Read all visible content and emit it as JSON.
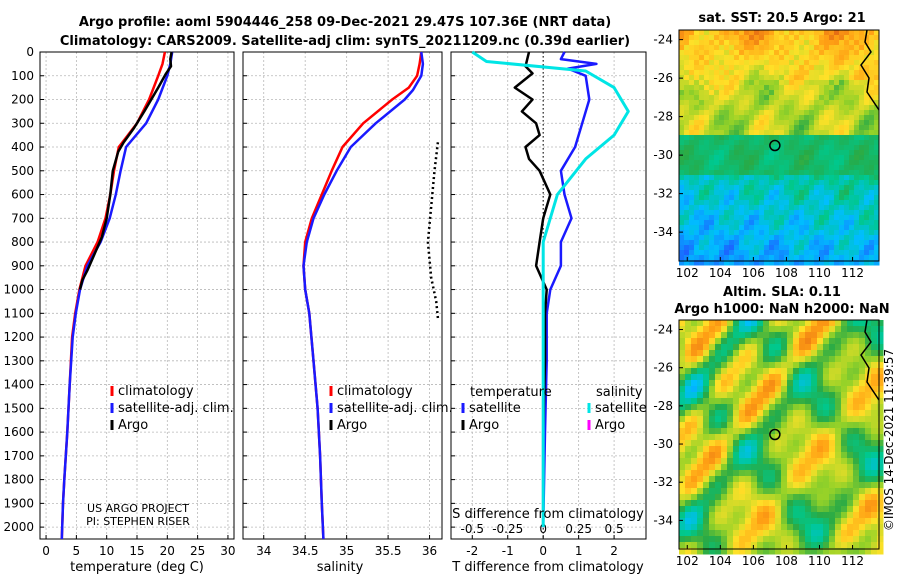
{
  "header": {
    "line1": "Argo profile: aoml 5904446_258 09-Dec-2021 29.47S 107.36E (NRT data)",
    "line2": "Climatology: CARS2009. Satellite-adj clim: synTS_20211209.nc (0.39d earlier)"
  },
  "colors": {
    "climatology": "#ff0000",
    "satellite": "#1a1aff",
    "argo": "#000000",
    "sat_salinity": "#00e5e5",
    "argo_salinity": "#ff00ff"
  },
  "chart_data": [
    {
      "id": "temperature",
      "type": "line",
      "xlabel": "temperature (deg C)",
      "ylabel": "",
      "xlim": [
        -1,
        31
      ],
      "ylim": [
        2050,
        0
      ],
      "xticks": [
        0,
        5,
        10,
        15,
        20,
        25,
        30
      ],
      "yticks": [
        0,
        100,
        200,
        300,
        400,
        500,
        600,
        700,
        800,
        900,
        1000,
        1100,
        1200,
        1300,
        1400,
        1500,
        1600,
        1700,
        1800,
        1900,
        2000
      ],
      "legend": [
        "climatology",
        "satellite-adj. clim.",
        "Argo"
      ],
      "note": [
        "US ARGO PROJECT",
        "PI: STEPHEN RISER"
      ],
      "series": [
        {
          "name": "climatology",
          "points": [
            [
              19.6,
              0
            ],
            [
              19.2,
              50
            ],
            [
              18.5,
              100
            ],
            [
              17.0,
              200
            ],
            [
              15.0,
              300
            ],
            [
              12.0,
              400
            ],
            [
              11.2,
              500
            ],
            [
              10.6,
              600
            ],
            [
              9.8,
              700
            ],
            [
              8.5,
              800
            ],
            [
              6.5,
              900
            ],
            [
              5.5,
              1000
            ],
            [
              4.8,
              1100
            ],
            [
              4.3,
              1200
            ],
            [
              3.9,
              1400
            ],
            [
              3.5,
              1600
            ],
            [
              3.0,
              1800
            ],
            [
              2.8,
              1900
            ],
            [
              2.6,
              2050
            ]
          ]
        },
        {
          "name": "satellite-adj. clim.",
          "points": [
            [
              20.8,
              0
            ],
            [
              20.5,
              50
            ],
            [
              20.0,
              100
            ],
            [
              18.5,
              200
            ],
            [
              16.5,
              300
            ],
            [
              13.2,
              400
            ],
            [
              12.3,
              500
            ],
            [
              11.5,
              600
            ],
            [
              10.5,
              700
            ],
            [
              9.0,
              800
            ],
            [
              6.8,
              900
            ],
            [
              5.6,
              1000
            ],
            [
              4.9,
              1100
            ],
            [
              4.4,
              1200
            ],
            [
              3.9,
              1400
            ],
            [
              3.5,
              1600
            ],
            [
              3.0,
              1800
            ],
            [
              2.8,
              1900
            ],
            [
              2.6,
              2050
            ]
          ]
        },
        {
          "name": "Argo",
          "points": [
            [
              20.7,
              0
            ],
            [
              20.5,
              30
            ],
            [
              20.6,
              60
            ],
            [
              19.8,
              90
            ],
            [
              18.5,
              150
            ],
            [
              16.2,
              250
            ],
            [
              14.5,
              320
            ],
            [
              12.8,
              380
            ],
            [
              11.9,
              420
            ],
            [
              11.0,
              500
            ],
            [
              10.6,
              600
            ],
            [
              10.0,
              700
            ],
            [
              9.2,
              780
            ],
            [
              8.0,
              850
            ],
            [
              6.8,
              920
            ],
            [
              6.0,
              960
            ],
            [
              5.6,
              1000
            ]
          ]
        }
      ]
    },
    {
      "id": "salinity",
      "type": "line",
      "xlabel": "salinity",
      "ylabel": "",
      "xlim": [
        33.75,
        36.15
      ],
      "ylim": [
        2050,
        0
      ],
      "xticks": [
        34,
        34.5,
        35,
        35.5,
        36
      ],
      "legend": [
        "climatology",
        "satellite-adj. clim.",
        "Argo"
      ],
      "series": [
        {
          "name": "climatology",
          "points": [
            [
              35.9,
              0
            ],
            [
              35.88,
              50
            ],
            [
              35.85,
              100
            ],
            [
              35.75,
              150
            ],
            [
              35.55,
              200
            ],
            [
              35.2,
              300
            ],
            [
              34.95,
              400
            ],
            [
              34.82,
              500
            ],
            [
              34.7,
              600
            ],
            [
              34.58,
              700
            ],
            [
              34.5,
              800
            ],
            [
              34.48,
              900
            ],
            [
              34.5,
              1000
            ],
            [
              34.55,
              1100
            ],
            [
              34.6,
              1300
            ],
            [
              34.65,
              1500
            ],
            [
              34.68,
              1700
            ],
            [
              34.7,
              1900
            ],
            [
              34.72,
              2050
            ]
          ]
        },
        {
          "name": "satellite-adj. clim.",
          "points": [
            [
              35.9,
              0
            ],
            [
              35.92,
              50
            ],
            [
              35.9,
              100
            ],
            [
              35.8,
              160
            ],
            [
              35.7,
              200
            ],
            [
              35.35,
              300
            ],
            [
              35.05,
              400
            ],
            [
              34.88,
              500
            ],
            [
              34.73,
              600
            ],
            [
              34.6,
              700
            ],
            [
              34.52,
              800
            ],
            [
              34.48,
              900
            ],
            [
              34.5,
              1000
            ],
            [
              34.55,
              1100
            ],
            [
              34.6,
              1300
            ],
            [
              34.65,
              1500
            ],
            [
              34.68,
              1700
            ],
            [
              34.7,
              1900
            ],
            [
              34.72,
              2050
            ]
          ]
        },
        {
          "name": "Argo (dotted)",
          "points": [
            [
              36.1,
              380
            ],
            [
              36.06,
              500
            ],
            [
              36.02,
              650
            ],
            [
              35.98,
              800
            ],
            [
              36.02,
              950
            ],
            [
              36.08,
              1050
            ],
            [
              36.1,
              1120
            ]
          ]
        }
      ]
    },
    {
      "id": "differences",
      "type": "line",
      "xlabel": "T difference from climatology",
      "xlabel_top": "S difference from climatology",
      "xlim": [
        -2.6,
        2.9
      ],
      "ylim": [
        2050,
        0
      ],
      "xticks": [
        -2,
        -1,
        0,
        1,
        2
      ],
      "xticks_top": [
        -0.5,
        -0.25,
        0,
        0.25,
        0.5
      ],
      "xticks_top_labels": [
        "-0.5",
        "-0.25",
        "0",
        "0.25",
        "0.5"
      ],
      "legend": {
        "temperature": [
          "satellite",
          "Argo"
        ],
        "salinity": [
          "satellite",
          "Argo"
        ]
      },
      "series": [
        {
          "name": "temperature satellite",
          "points": [
            [
              0.6,
              0
            ],
            [
              0.5,
              30
            ],
            [
              1.5,
              50
            ],
            [
              0.7,
              70
            ],
            [
              1.2,
              100
            ],
            [
              1.3,
              200
            ],
            [
              1.1,
              300
            ],
            [
              0.9,
              400
            ],
            [
              0.5,
              500
            ],
            [
              0.6,
              600
            ],
            [
              0.8,
              700
            ],
            [
              0.5,
              800
            ],
            [
              0.5,
              900
            ],
            [
              0.2,
              1000
            ],
            [
              0.1,
              1100
            ],
            [
              0.1,
              1300
            ],
            [
              0.05,
              1600
            ],
            [
              0.0,
              2000
            ]
          ]
        },
        {
          "name": "temperature Argo",
          "points": [
            [
              -0.4,
              0
            ],
            [
              -0.5,
              60
            ],
            [
              -0.3,
              90
            ],
            [
              -0.8,
              150
            ],
            [
              -0.3,
              200
            ],
            [
              -0.6,
              250
            ],
            [
              -0.2,
              300
            ],
            [
              -0.1,
              350
            ],
            [
              -0.5,
              400
            ],
            [
              -0.4,
              450
            ],
            [
              -0.1,
              500
            ],
            [
              0.2,
              600
            ],
            [
              0.0,
              700
            ],
            [
              -0.1,
              800
            ],
            [
              -0.2,
              900
            ],
            [
              0.1,
              1000
            ],
            [
              0.05,
              1100
            ],
            [
              0.05,
              1300
            ],
            [
              0.0,
              1600
            ],
            [
              0.0,
              2000
            ]
          ]
        },
        {
          "name": "salinity satellite",
          "points": [
            [
              -0.5,
              0
            ],
            [
              -0.4,
              40
            ],
            [
              0.3,
              80
            ],
            [
              0.5,
              150
            ],
            [
              0.6,
              250
            ],
            [
              0.5,
              350
            ],
            [
              0.3,
              450
            ],
            [
              0.1,
              600
            ],
            [
              0.0,
              800
            ],
            [
              0.0,
              1000
            ],
            [
              0.0,
              1200
            ],
            [
              0.0,
              1600
            ],
            [
              0.0,
              2000
            ]
          ]
        }
      ]
    }
  ],
  "maps": [
    {
      "id": "sst",
      "title": "sat. SST: 20.5  Argo: 21",
      "xticks": [
        102,
        104,
        106,
        108,
        110,
        112
      ],
      "yticks": [
        -24,
        -26,
        -28,
        -30,
        -32,
        -34
      ],
      "xlim": [
        101.5,
        113.6
      ],
      "ylim": [
        -23.5,
        -35.5
      ],
      "float": [
        107.3,
        -29.5
      ]
    },
    {
      "id": "sla",
      "title_line1": "Altim. SLA: 0.11",
      "title_line2": "Argo h1000: NaN h2000: NaN",
      "xticks": [
        102,
        104,
        106,
        108,
        110,
        112
      ],
      "yticks": [
        -24,
        -26,
        -28,
        -30,
        -32,
        -34
      ],
      "xlim": [
        101.5,
        113.6
      ],
      "ylim": [
        -23.5,
        -35.5
      ],
      "float": [
        107.3,
        -29.5
      ]
    }
  ],
  "credit": "©IMOS 14-Dec-2021 11:39:57"
}
